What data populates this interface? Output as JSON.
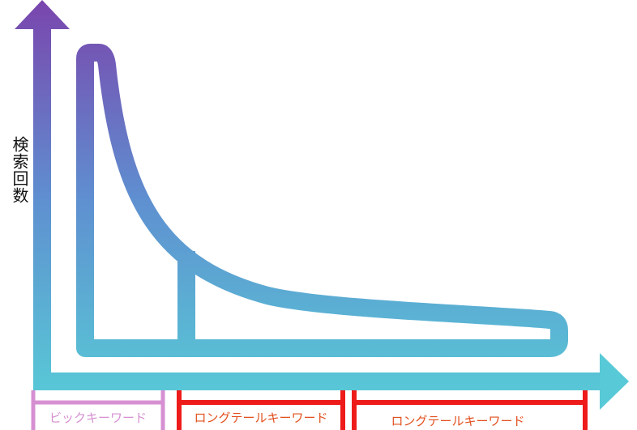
{
  "y_axis_label": "検索回数",
  "segments": [
    {
      "label": "ビックキーワード"
    },
    {
      "label": "ロングテールキーワード"
    },
    {
      "label": "ロングテールキーワード"
    }
  ]
}
